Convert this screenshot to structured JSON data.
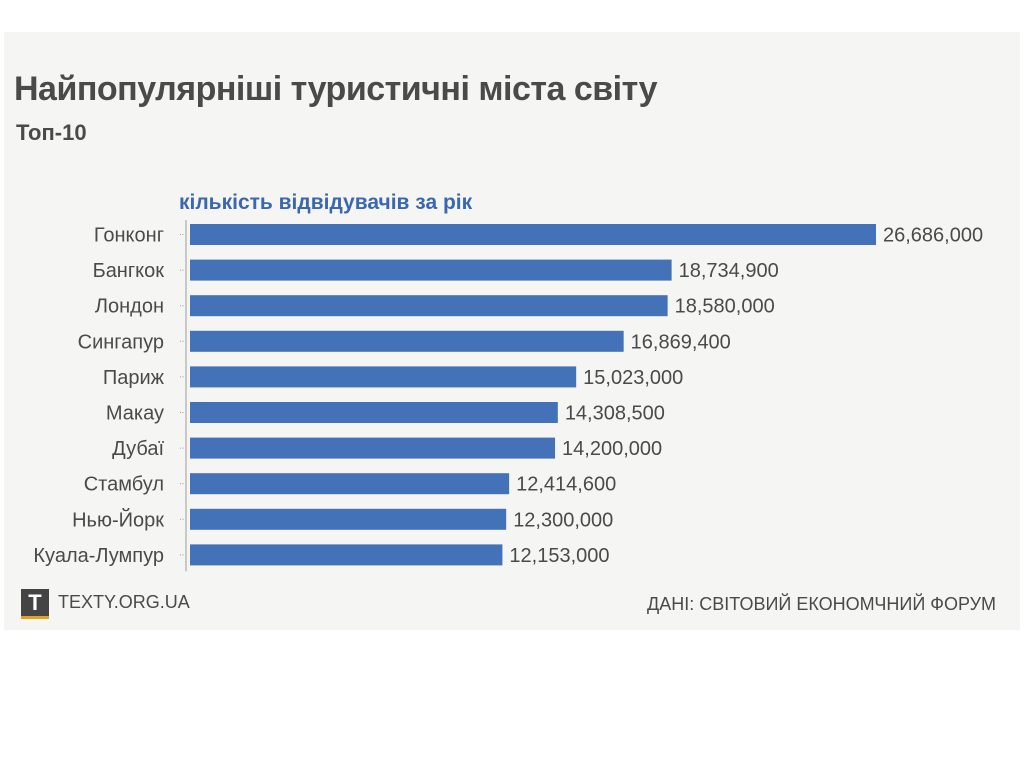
{
  "header": {
    "title": "Найпопулярніші туристичні міста світу",
    "subtitle": "Топ-10"
  },
  "footer": {
    "logo_letter": "T",
    "site": "TEXTY.ORG.UA",
    "source": "ДАНІ: СВІТОВИЙ ЕКОНОМЧНИЙ ФОРУМ"
  },
  "colors": {
    "bar": "#4472b8",
    "axis_label": "#3a67b0",
    "text": "#4a4a4a",
    "panel_bg": "#f5f5f3"
  },
  "chart_data": {
    "type": "bar",
    "orientation": "horizontal",
    "title": "Найпопулярніші туристичні міста світу",
    "subtitle": "Топ-10",
    "xlabel": "кількість відвідувачів за рік",
    "ylabel": "",
    "xlim": [
      0,
      26686000
    ],
    "grid": false,
    "legend": "none",
    "categories": [
      "Гонконг",
      "Бангкок",
      "Лондон",
      "Сингапур",
      "Париж",
      "Макау",
      "Дубаї",
      "Стамбул",
      "Нью-Йорк",
      "Куала-Лумпур"
    ],
    "values": [
      26686000,
      18734900,
      18580000,
      16869400,
      15023000,
      14308500,
      14200000,
      12414600,
      12300000,
      12153000
    ],
    "value_labels": [
      "26,686,000",
      "18,734,900",
      "18,580,000",
      "16,869,400",
      "15,023,000",
      "14,308,500",
      "14,200,000",
      "12,414,600",
      "12,300,000",
      "12,153,000"
    ]
  }
}
